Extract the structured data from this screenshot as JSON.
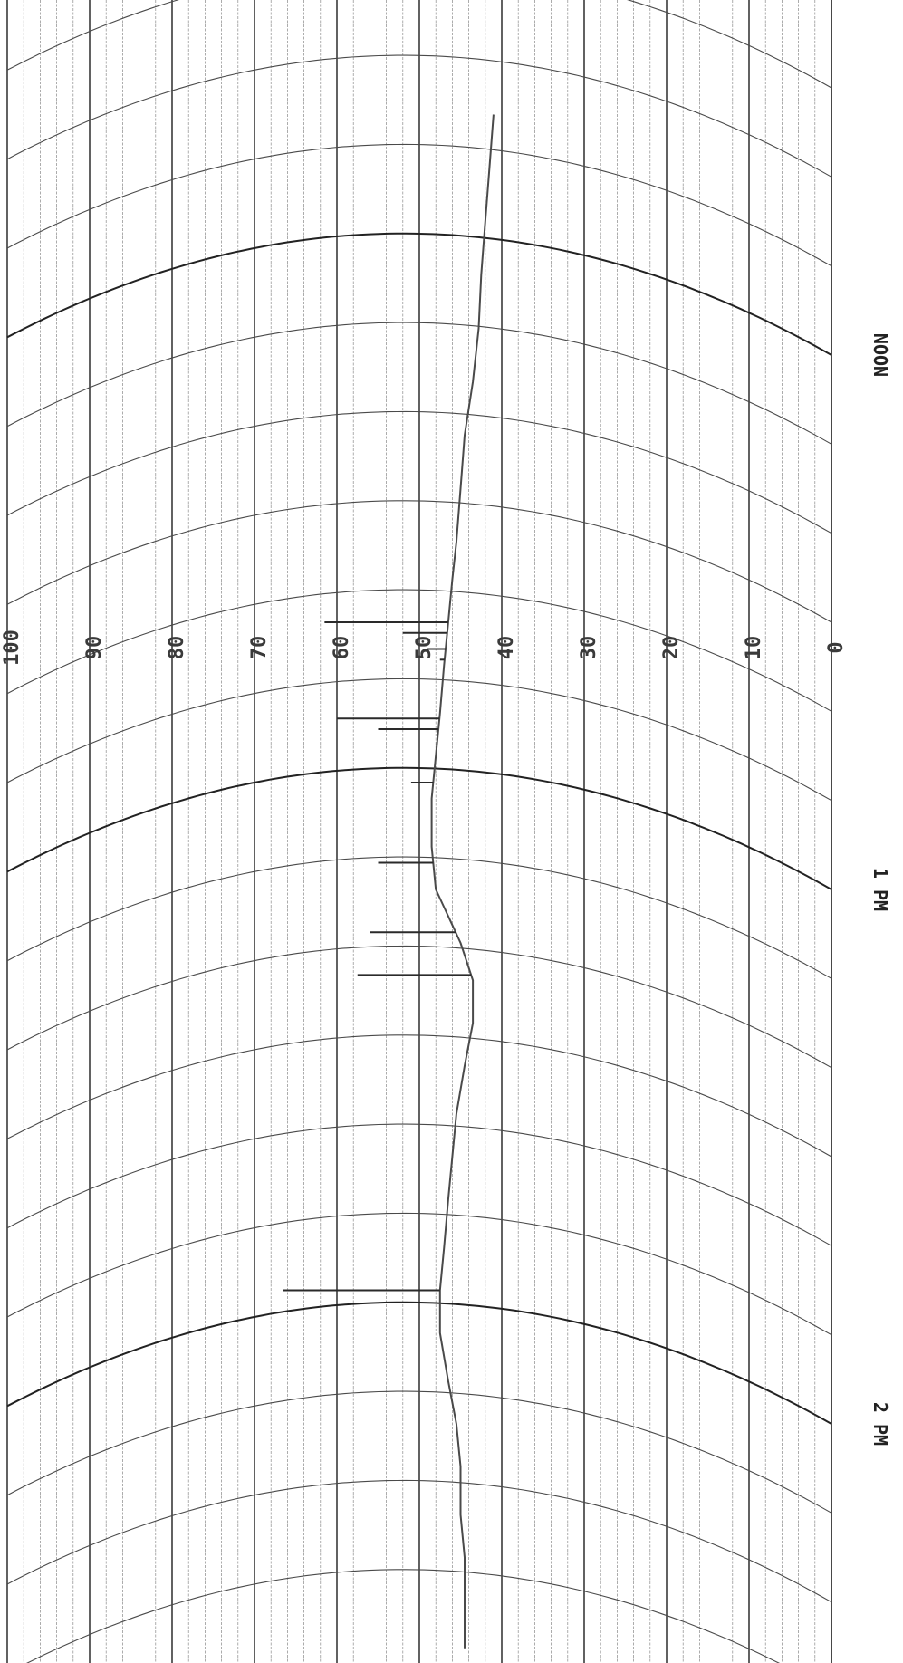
{
  "chart_data": {
    "type": "line",
    "title": "",
    "xlabel": "",
    "ylabel": "",
    "value_axis": {
      "ticks": [
        0,
        10,
        20,
        30,
        40,
        50,
        60,
        70,
        80,
        90,
        100
      ],
      "tick_labels": [
        "0",
        "10",
        "20",
        "30",
        "40",
        "50",
        "60",
        "70",
        "80",
        "90",
        "100"
      ],
      "range": [
        0,
        100
      ],
      "minor_step": 2,
      "orientation": "rotated, increasing right to left"
    },
    "time_axis": {
      "labels": [
        "NOON",
        "1 PM",
        "2 PM"
      ],
      "label_times_h": [
        12,
        13,
        14
      ],
      "arc_step_min": 10
    },
    "grid": true,
    "colors": {
      "grid": "#555555",
      "trace": "#4a4a4a",
      "paper": "#ffffff"
    },
    "series": [
      {
        "values": [
          {
            "t": 11.55,
            "v": 41.0
          },
          {
            "t": 11.65,
            "v": 41.5
          },
          {
            "t": 11.75,
            "v": 42.0
          },
          {
            "t": 11.85,
            "v": 42.5
          },
          {
            "t": 11.95,
            "v": 42.8
          },
          {
            "t": 12.05,
            "v": 43.5
          },
          {
            "t": 12.15,
            "v": 44.5
          },
          {
            "t": 12.25,
            "v": 45.0
          },
          {
            "t": 12.35,
            "v": 45.5
          },
          {
            "t": 12.42,
            "v": 46.0
          },
          {
            "t": 12.5,
            "v": 46.5
          },
          {
            "t": 12.58,
            "v": 47.0
          },
          {
            "t": 12.67,
            "v": 47.5
          },
          {
            "t": 12.75,
            "v": 48.0
          },
          {
            "t": 12.83,
            "v": 48.5
          },
          {
            "t": 12.92,
            "v": 48.5
          },
          {
            "t": 13.0,
            "v": 48.0
          },
          {
            "t": 13.05,
            "v": 46.5
          },
          {
            "t": 13.1,
            "v": 45.0
          },
          {
            "t": 13.17,
            "v": 43.5
          },
          {
            "t": 13.25,
            "v": 43.5
          },
          {
            "t": 13.33,
            "v": 44.5
          },
          {
            "t": 13.42,
            "v": 45.5
          },
          {
            "t": 13.5,
            "v": 46.0
          },
          {
            "t": 13.58,
            "v": 46.5
          },
          {
            "t": 13.67,
            "v": 47.0
          },
          {
            "t": 13.75,
            "v": 47.5
          },
          {
            "t": 13.83,
            "v": 47.5
          },
          {
            "t": 13.92,
            "v": 46.5
          },
          {
            "t": 14.0,
            "v": 45.5
          },
          {
            "t": 14.08,
            "v": 45.0
          },
          {
            "t": 14.17,
            "v": 45.0
          },
          {
            "t": 14.25,
            "v": 44.5
          },
          {
            "t": 14.33,
            "v": 44.5
          },
          {
            "t": 14.42,
            "v": 44.5
          }
        ]
      }
    ],
    "spikes": [
      {
        "t": 12.5,
        "v": 61.5
      },
      {
        "t": 12.52,
        "v": 52.0
      },
      {
        "t": 12.55,
        "v": 49.0
      },
      {
        "t": 12.57,
        "v": 47.5
      },
      {
        "t": 12.68,
        "v": 60.0
      },
      {
        "t": 12.7,
        "v": 55.0
      },
      {
        "t": 12.8,
        "v": 51.0
      },
      {
        "t": 12.95,
        "v": 55.0
      },
      {
        "t": 13.08,
        "v": 56.0
      },
      {
        "t": 13.16,
        "v": 57.5
      },
      {
        "t": 13.75,
        "v": 66.5
      }
    ]
  }
}
